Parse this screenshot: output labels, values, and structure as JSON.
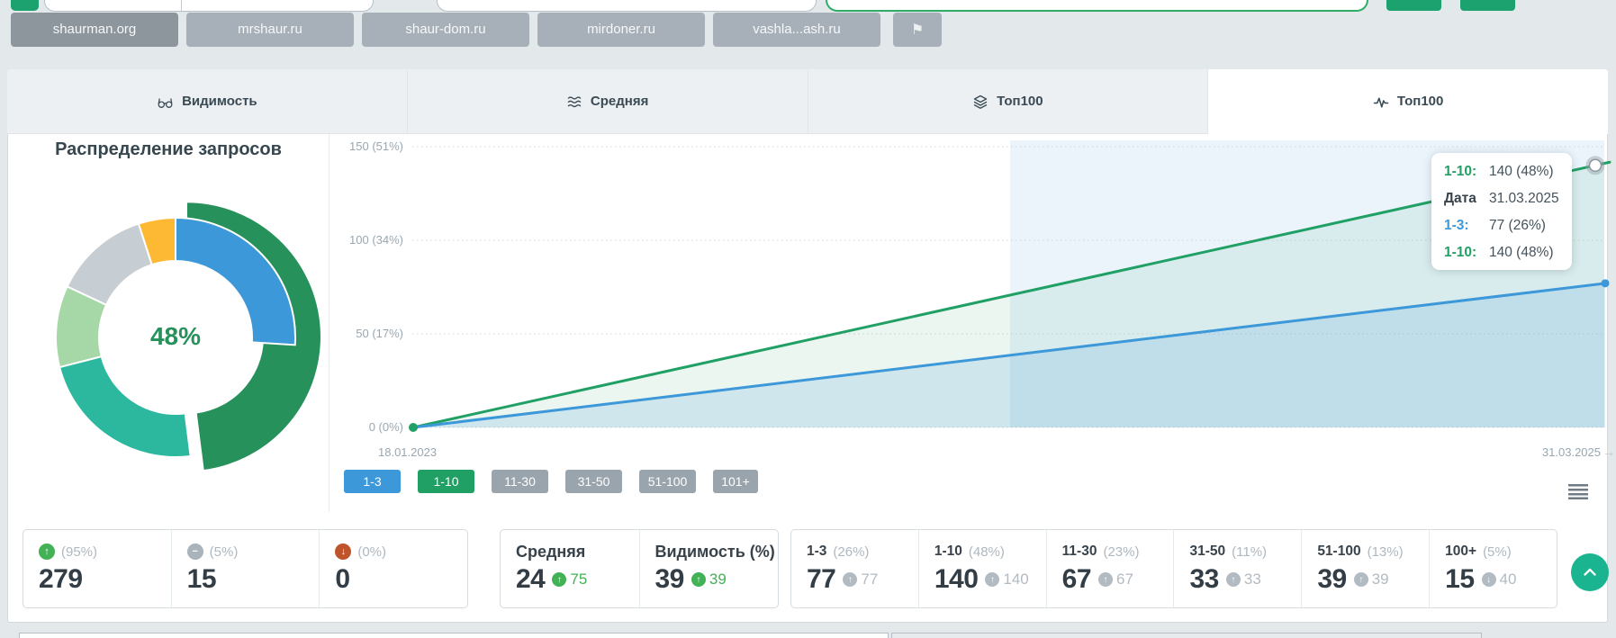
{
  "topbar": {
    "domains": [
      "shaurman.org",
      "mrshaur.ru",
      "shaur-dom.ru",
      "mirdoner.ru",
      "vashla...ash.ru"
    ],
    "active_domain": "shaurman.org"
  },
  "tabs": [
    {
      "label": "Видимость",
      "icon": "glasses-icon",
      "active": false
    },
    {
      "label": "Средняя",
      "icon": "waves-icon",
      "active": false
    },
    {
      "label": "Топ100",
      "icon": "layers-icon",
      "active": false
    },
    {
      "label": "Топ100",
      "icon": "pulse-icon",
      "active": true
    }
  ],
  "chart_data": [
    {
      "type": "pie",
      "subtype": "donut",
      "title": "Распределение запросов",
      "center_label": "48%",
      "segments": [
        {
          "label": "1-10",
          "value_pct": 48,
          "color": "#27915c",
          "exploded": true,
          "ring_outer": 150
        },
        {
          "label": "1-3",
          "value_pct": 26,
          "color": "#3d98d9",
          "overlay": true
        },
        {
          "label": "11-30",
          "value_pct": 23,
          "color": "#2cb89e"
        },
        {
          "label": "31-50",
          "value_pct": 11,
          "color": "#a6d7a6"
        },
        {
          "label": "51-100",
          "value_pct": 13,
          "color": "#c6cdd3"
        },
        {
          "label": "100+",
          "value_pct": 5,
          "color": "#fdb933"
        }
      ]
    },
    {
      "type": "line",
      "x_labels": [
        "18.01.2023",
        "31.03.2025"
      ],
      "y_max": 150,
      "y_ticks": [
        {
          "value": 150,
          "label": "150 (51%)"
        },
        {
          "value": 100,
          "label": "100 (34%)"
        },
        {
          "value": 50,
          "label": "50 (17%)"
        },
        {
          "value": 0,
          "label": "0 (0%)"
        }
      ],
      "series": [
        {
          "name": "1-3",
          "color": "#3d98d9",
          "values": [
            0,
            77
          ]
        },
        {
          "name": "1-10",
          "color": "#21a065",
          "values": [
            0,
            140
          ]
        }
      ],
      "highlight_band": true,
      "grid": "dotted-horizontal",
      "legend_position": "bottom-left"
    }
  ],
  "tooltip": {
    "rows": [
      {
        "label": "1-10:",
        "color": "#21a065",
        "value": "140 (48%)"
      },
      {
        "label": "Дата",
        "color": "#37424b",
        "value": "31.03.2025"
      },
      {
        "label": "1-3:",
        "color": "#3d98d9",
        "value": "77 (26%)"
      },
      {
        "label": "1-10:",
        "color": "#21a065",
        "value": "140 (48%)"
      }
    ]
  },
  "legend": {
    "buttons": [
      {
        "label": "1-3",
        "color": "#3d98d9",
        "active": true
      },
      {
        "label": "1-10",
        "color": "#21a065",
        "active": true
      },
      {
        "label": "11-30",
        "color": "#9aa4ac",
        "active": false
      },
      {
        "label": "31-50",
        "color": "#9aa4ac",
        "active": false
      },
      {
        "label": "51-100",
        "color": "#9aa4ac",
        "active": false
      },
      {
        "label": "101+",
        "color": "#9aa4ac",
        "active": false
      }
    ]
  },
  "stats": {
    "summary": [
      {
        "icon": "arrow-up-circle-icon",
        "icon_color": "#43b155",
        "percent": "(95%)",
        "value": "279"
      },
      {
        "icon": "minus-circle-icon",
        "icon_color": "#a9b3bb",
        "percent": "(5%)",
        "value": "15"
      },
      {
        "icon": "arrow-down-circle-icon",
        "icon_color": "#bf5329",
        "percent": "(0%)",
        "value": "0"
      }
    ],
    "metrics": [
      {
        "label": "Средняя",
        "value": "24",
        "delta": "75",
        "delta_dir": "up",
        "delta_color": "#43b155"
      },
      {
        "label": "Видимость (%)",
        "value": "39",
        "delta": "39",
        "delta_dir": "up",
        "delta_color": "#43b155"
      }
    ],
    "positions": [
      {
        "label": "1-3",
        "percent": "(26%)",
        "value": "77",
        "delta": "77",
        "delta_dir": "up",
        "delta_color": "#b2bac2"
      },
      {
        "label": "1-10",
        "percent": "(48%)",
        "value": "140",
        "delta": "140",
        "delta_dir": "up",
        "delta_color": "#b2bac2"
      },
      {
        "label": "11-30",
        "percent": "(23%)",
        "value": "67",
        "delta": "67",
        "delta_dir": "up",
        "delta_color": "#b2bac2"
      },
      {
        "label": "31-50",
        "percent": "(11%)",
        "value": "33",
        "delta": "33",
        "delta_dir": "up",
        "delta_color": "#b2bac2"
      },
      {
        "label": "51-100",
        "percent": "(13%)",
        "value": "39",
        "delta": "39",
        "delta_dir": "up",
        "delta_color": "#b2bac2"
      },
      {
        "label": "100+",
        "percent": "(5%)",
        "value": "15",
        "delta": "40",
        "delta_dir": "down",
        "delta_color": "#b2bac2"
      }
    ]
  },
  "icons": {
    "flag": "⚑",
    "arrow_up": "↑",
    "arrow_down": "↓",
    "minus": "−",
    "arrow_right": "→"
  },
  "colors": {
    "accent_green": "#1ca26e",
    "series_blue": "#3d98d9",
    "series_green": "#21a065",
    "inactive_gray": "#9aa4ac",
    "scroll_button": "#1bb490",
    "page_bg": "#e3e8ea"
  }
}
